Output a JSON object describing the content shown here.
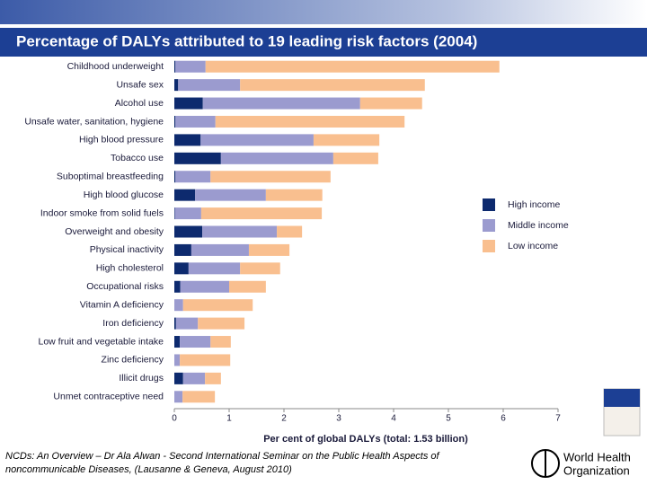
{
  "chart_data": {
    "type": "bar",
    "orientation": "horizontal",
    "stacked": true,
    "title": "Percentage of DALYs attributed to 19 leading risk factors (2004)",
    "xlabel": "Per cent of global DALYs (total: 1.53 billion)",
    "categories": [
      "Childhood underweight",
      "Unsafe sex",
      "Alcohol use",
      "Unsafe water, sanitation, hygiene",
      "High blood pressure",
      "Tobacco use",
      "Suboptimal breastfeeding",
      "High blood glucose",
      "Indoor smoke from solid fuels",
      "Overweight and obesity",
      "Physical inactivity",
      "High cholesterol",
      "Occupational risks",
      "Vitamin A deficiency",
      "Iron deficiency",
      "Low fruit and vegetable intake",
      "Zinc deficiency",
      "Illicit drugs",
      "Unmet contraceptive need"
    ],
    "series": [
      {
        "name": "High income",
        "color": "#0d2a6e",
        "values": [
          0.02,
          0.07,
          0.52,
          0.02,
          0.48,
          0.85,
          0.02,
          0.38,
          0.01,
          0.51,
          0.31,
          0.26,
          0.11,
          0,
          0.03,
          0.1,
          0,
          0.16,
          0
        ]
      },
      {
        "name": "Middle income",
        "color": "#9b9bcf",
        "values": [
          0.55,
          1.13,
          2.87,
          0.73,
          2.06,
          2.05,
          0.64,
          1.29,
          0.48,
          1.36,
          1.05,
          0.94,
          0.89,
          0.16,
          0.4,
          0.56,
          0.1,
          0.4,
          0.15
        ]
      },
      {
        "name": "Low income",
        "color": "#f9bf8f",
        "values": [
          5.36,
          3.37,
          1.13,
          3.45,
          1.2,
          0.82,
          2.19,
          1.03,
          2.2,
          0.46,
          0.74,
          0.73,
          0.67,
          1.27,
          0.85,
          0.37,
          0.92,
          0.29,
          0.59
        ]
      }
    ],
    "xlim": [
      0,
      7
    ],
    "xticks": [
      0,
      1,
      2,
      3,
      4,
      5,
      6,
      7
    ],
    "legend": "right"
  },
  "footer": {
    "lines": [
      "NCDs: An Overview – Dr Ala Alwan - Second International Seminar on the Public Health Aspects of",
      "noncommunicable Diseases, (Lausanne & Geneva, August 2010)"
    ]
  },
  "logo": {
    "lines": [
      "World Health",
      "Organization"
    ]
  }
}
